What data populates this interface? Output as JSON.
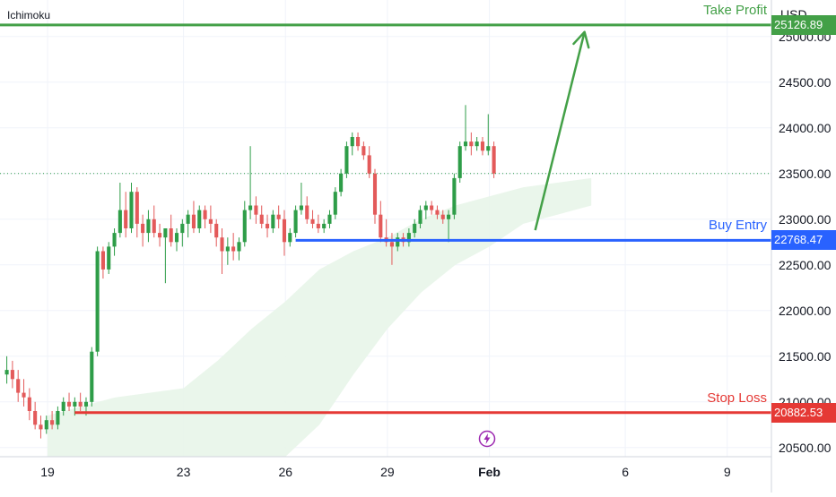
{
  "indicator": "Ichimoku",
  "currency": "USD",
  "levels": {
    "take_profit": {
      "label": "Take Profit",
      "price": 25126.89,
      "price_text": "25126.89",
      "color": "#43a047"
    },
    "buy_entry": {
      "label": "Buy Entry",
      "price": 22768.47,
      "price_text": "22768.47",
      "color": "#2962ff"
    },
    "stop_loss": {
      "label": "Stop Loss",
      "price": 20882.53,
      "price_text": "20882.53",
      "color": "#e53935"
    }
  },
  "colors": {
    "up": "#26a69a",
    "down": "#ef5350",
    "bull_candle": "#2e9d48",
    "bear_candle": "#e35a5a",
    "cloud": "#e8f5e9",
    "arrow": "#43a047",
    "grid": "#f0f3fa",
    "axis_text": "#131722",
    "event_icon": "#9c27b0"
  },
  "icons": {
    "event": "lightning-bolt-icon"
  },
  "chart_data": {
    "type": "candlestick",
    "y_axis": {
      "range": [
        20400,
        25400
      ],
      "ticks": [
        20500,
        21000,
        21500,
        22000,
        22500,
        23000,
        23500,
        24000,
        24500,
        25000
      ],
      "tick_labels": [
        "20500.00",
        "21000.00",
        "21500.00",
        "22000.00",
        "22500.00",
        "23000.00",
        "23500.00",
        "24000.00",
        "24500.00",
        "25000.00"
      ]
    },
    "x_axis": {
      "tick_labels": [
        "19",
        "23",
        "26",
        "29",
        "Feb",
        "6",
        "9"
      ],
      "tick_days": [
        0,
        4,
        7,
        10,
        13,
        17,
        20
      ],
      "range_days": [
        -1.4,
        21.3
      ]
    },
    "candles_per_day": 6,
    "candles": [
      [
        21300,
        21500,
        21200,
        21350
      ],
      [
        21350,
        21450,
        21150,
        21250
      ],
      [
        21250,
        21350,
        21000,
        21100
      ],
      [
        21100,
        21250,
        20950,
        21050
      ],
      [
        21050,
        21150,
        20800,
        20900
      ],
      [
        20900,
        21000,
        20700,
        20750
      ],
      [
        20750,
        20850,
        20600,
        20700
      ],
      [
        20700,
        20850,
        20650,
        20800
      ],
      [
        20800,
        20900,
        20700,
        20750
      ],
      [
        20750,
        20950,
        20700,
        20900
      ],
      [
        20900,
        21050,
        20850,
        21000
      ],
      [
        21000,
        21100,
        20900,
        20950
      ],
      [
        20950,
        21050,
        20850,
        21000
      ],
      [
        21000,
        21100,
        20900,
        20950
      ],
      [
        20950,
        21050,
        20850,
        21000
      ],
      [
        21000,
        21600,
        20950,
        21550
      ],
      [
        21550,
        22700,
        21500,
        22650
      ],
      [
        22650,
        22700,
        22350,
        22450
      ],
      [
        22450,
        22750,
        22400,
        22700
      ],
      [
        22700,
        22900,
        22600,
        22850
      ],
      [
        22850,
        23400,
        22800,
        23100
      ],
      [
        23100,
        23300,
        22800,
        22900
      ],
      [
        22900,
        23400,
        22850,
        23300
      ],
      [
        23300,
        23350,
        22800,
        22950
      ],
      [
        22950,
        23050,
        22700,
        22850
      ],
      [
        22850,
        23100,
        22750,
        23000
      ],
      [
        23000,
        23150,
        22800,
        22850
      ],
      [
        22850,
        22950,
        22700,
        22800
      ],
      [
        22800,
        22900,
        22300,
        22900
      ],
      [
        22900,
        23050,
        22700,
        22750
      ],
      [
        22750,
        22900,
        22650,
        22850
      ],
      [
        22850,
        23000,
        22700,
        22950
      ],
      [
        22950,
        23100,
        22800,
        23050
      ],
      [
        23050,
        23200,
        22850,
        22900
      ],
      [
        22900,
        23150,
        22850,
        23100
      ],
      [
        23100,
        23150,
        22900,
        23000
      ],
      [
        23000,
        23150,
        22850,
        22950
      ],
      [
        22950,
        23000,
        22700,
        22800
      ],
      [
        22800,
        22900,
        22400,
        22650
      ],
      [
        22650,
        22800,
        22500,
        22700
      ],
      [
        22700,
        22850,
        22550,
        22650
      ],
      [
        22650,
        22800,
        22550,
        22750
      ],
      [
        22750,
        23200,
        22700,
        23100
      ],
      [
        23100,
        23800,
        23000,
        23150
      ],
      [
        23150,
        23250,
        22950,
        23050
      ],
      [
        23050,
        23150,
        22900,
        22950
      ],
      [
        22950,
        23050,
        22800,
        22900
      ],
      [
        22900,
        23100,
        22850,
        23050
      ],
      [
        23050,
        23150,
        22900,
        23000
      ],
      [
        23000,
        23100,
        22600,
        22750
      ],
      [
        22750,
        22900,
        22700,
        22850
      ],
      [
        22850,
        23150,
        22800,
        23100
      ],
      [
        23100,
        23400,
        23050,
        23150
      ],
      [
        23150,
        23250,
        22950,
        23000
      ],
      [
        23000,
        23100,
        22900,
        22950
      ],
      [
        22950,
        23050,
        22850,
        22900
      ],
      [
        22900,
        23000,
        22850,
        22950
      ],
      [
        22950,
        23100,
        22900,
        23050
      ],
      [
        23050,
        23350,
        23000,
        23300
      ],
      [
        23300,
        23550,
        23250,
        23500
      ],
      [
        23500,
        23850,
        23450,
        23800
      ],
      [
        23800,
        23950,
        23700,
        23900
      ],
      [
        23900,
        23950,
        23750,
        23800
      ],
      [
        23800,
        23850,
        23650,
        23700
      ],
      [
        23700,
        23800,
        23450,
        23500
      ],
      [
        23500,
        23550,
        22950,
        23050
      ],
      [
        23050,
        23200,
        22750,
        22800
      ],
      [
        22800,
        23000,
        22700,
        22750
      ],
      [
        22750,
        22850,
        22500,
        22700
      ],
      [
        22700,
        22850,
        22650,
        22800
      ],
      [
        22800,
        22850,
        22700,
        22750
      ],
      [
        22750,
        22900,
        22700,
        22850
      ],
      [
        22850,
        23000,
        22800,
        22950
      ],
      [
        22950,
        23150,
        22900,
        23100
      ],
      [
        23100,
        23200,
        23000,
        23150
      ],
      [
        23150,
        23200,
        23050,
        23100
      ],
      [
        23100,
        23150,
        23000,
        23050
      ],
      [
        23050,
        23100,
        22950,
        23000
      ],
      [
        23000,
        23100,
        22750,
        23050
      ],
      [
        23050,
        23500,
        23000,
        23450
      ],
      [
        23450,
        23850,
        23400,
        23800
      ],
      [
        23800,
        24250,
        23750,
        23850
      ],
      [
        23850,
        23950,
        23700,
        23800
      ],
      [
        23800,
        23900,
        23750,
        23850
      ],
      [
        23850,
        23900,
        23700,
        23750
      ],
      [
        23750,
        24150,
        23700,
        23800
      ],
      [
        23800,
        23850,
        23450,
        23500
      ]
    ],
    "cloud": {
      "x_days": [
        0,
        1,
        2,
        3,
        4,
        5,
        6,
        7,
        8,
        9,
        10,
        11,
        12,
        13,
        14,
        15,
        16
      ],
      "upper": [
        20850,
        20950,
        21050,
        21100,
        21150,
        21450,
        21800,
        22100,
        22450,
        22650,
        22800,
        23000,
        23150,
        23250,
        23350,
        23400,
        23450
      ],
      "lower": [
        20400,
        20400,
        20400,
        20400,
        20400,
        20400,
        20400,
        20400,
        20750,
        21300,
        21800,
        22200,
        22500,
        22700,
        22950,
        23050,
        23150
      ]
    },
    "projection_arrow": {
      "from": [
        14.35,
        22880
      ],
      "to": [
        15.8,
        25050
      ]
    }
  }
}
